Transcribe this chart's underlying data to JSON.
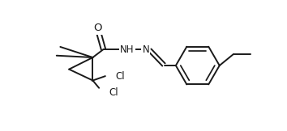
{
  "background_color": "#ffffff",
  "line_color": "#1a1a1a",
  "line_width": 1.4,
  "font_size": 8.5,
  "figsize": [
    3.54,
    1.62
  ],
  "dpi": 100,
  "xlim": [
    0,
    354
  ],
  "ylim": [
    0,
    162
  ]
}
